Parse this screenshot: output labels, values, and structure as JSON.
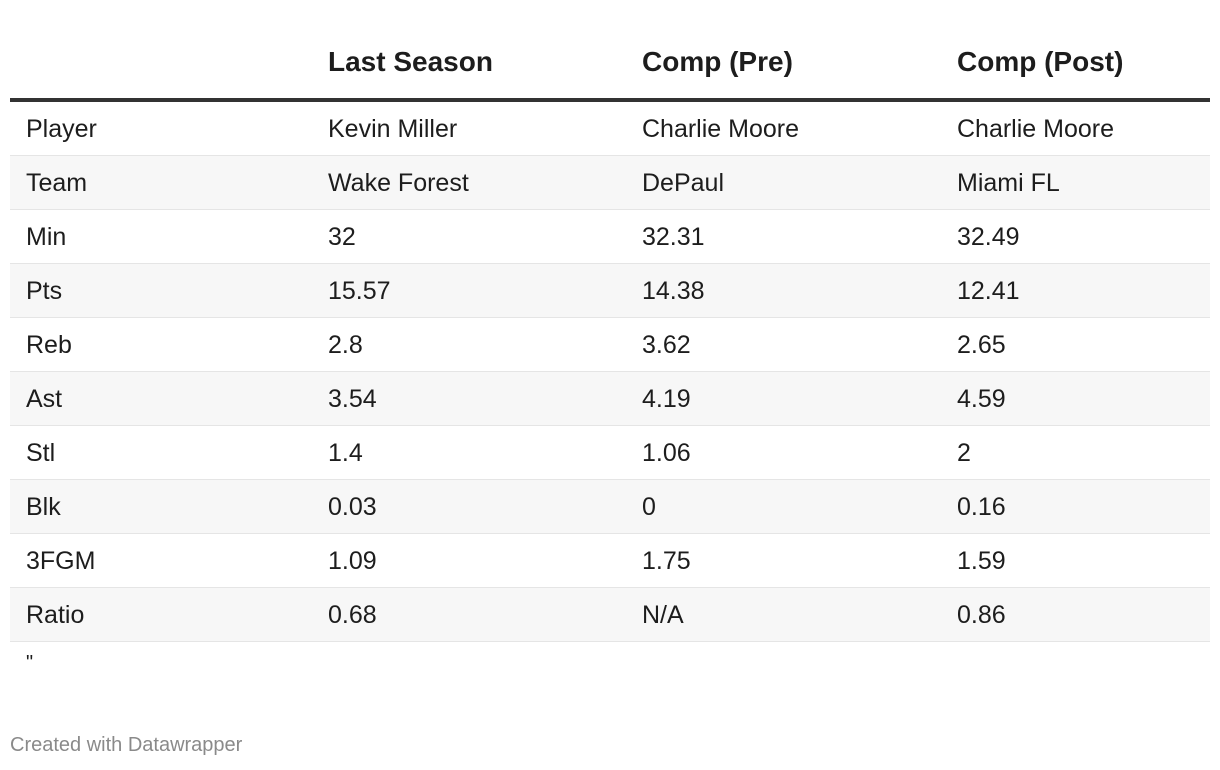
{
  "headers": [
    "",
    "Last Season",
    "Comp (Pre)",
    "Comp (Post)"
  ],
  "rows": [
    [
      "Player",
      "Kevin Miller",
      "Charlie Moore",
      "Charlie Moore"
    ],
    [
      "Team",
      "Wake Forest",
      "DePaul",
      "Miami FL"
    ],
    [
      "Min",
      "32",
      "32.31",
      "32.49"
    ],
    [
      "Pts",
      "15.57",
      "14.38",
      "12.41"
    ],
    [
      "Reb",
      "2.8",
      "3.62",
      "2.65"
    ],
    [
      "Ast",
      "3.54",
      "4.19",
      "4.59"
    ],
    [
      "Stl",
      "1.4",
      "1.06",
      "2"
    ],
    [
      "Blk",
      "0.03",
      "0",
      "0.16"
    ],
    [
      "3FGM",
      "1.09",
      "1.75",
      "1.59"
    ],
    [
      "Ratio",
      "0.68",
      "N/A",
      "0.86"
    ]
  ],
  "note": "\"",
  "credit": "Created with Datawrapper"
}
